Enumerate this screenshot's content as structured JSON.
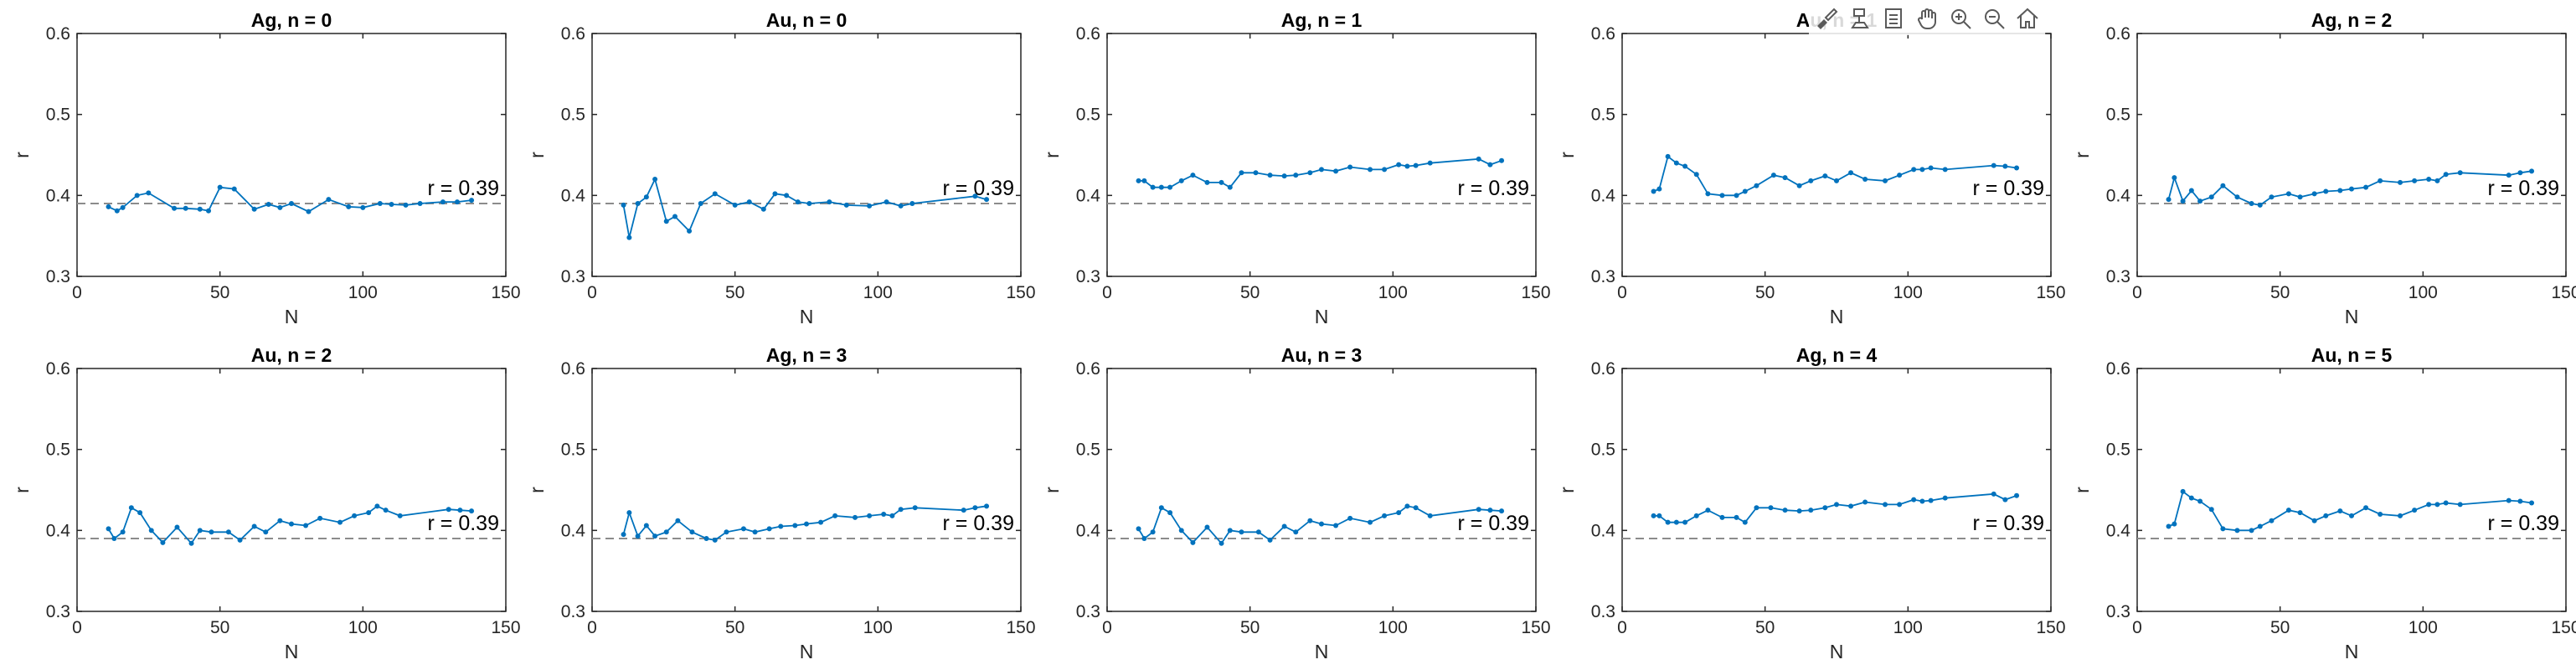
{
  "toolbar": {
    "items": [
      {
        "name": "brush-data-icon"
      },
      {
        "name": "data-tips-icon"
      },
      {
        "name": "export-icon"
      },
      {
        "name": "pan-icon"
      },
      {
        "name": "zoom-in-icon"
      },
      {
        "name": "zoom-out-icon"
      },
      {
        "name": "restore-view-icon"
      }
    ]
  },
  "chart_data": [
    {
      "type": "line",
      "title": "Ag, n = 0",
      "xlabel": "N",
      "ylabel": "r",
      "xlim": [
        0,
        150
      ],
      "ylim": [
        0.3,
        0.6
      ],
      "xticks": [
        "0",
        "50",
        "100",
        "150"
      ],
      "yticks": [
        "0.3",
        "0.4",
        "0.5",
        "0.6"
      ],
      "reference_line": {
        "y": 0.39,
        "label": "r = 0.39"
      },
      "x": [
        11,
        14,
        16,
        21,
        25,
        34,
        38,
        43,
        46,
        50,
        55,
        62,
        67,
        71,
        75,
        81,
        88,
        95,
        100,
        106,
        110,
        115,
        120,
        128,
        133,
        138
      ],
      "y": [
        0.386,
        0.381,
        0.385,
        0.4,
        0.403,
        0.384,
        0.384,
        0.383,
        0.381,
        0.41,
        0.408,
        0.383,
        0.389,
        0.385,
        0.39,
        0.38,
        0.395,
        0.386,
        0.385,
        0.39,
        0.389,
        0.388,
        0.39,
        0.392,
        0.392,
        0.394
      ]
    },
    {
      "type": "line",
      "title": "Au, n = 0",
      "xlabel": "N",
      "ylabel": "r",
      "xlim": [
        0,
        150
      ],
      "ylim": [
        0.3,
        0.6
      ],
      "xticks": [
        "0",
        "50",
        "100",
        "150"
      ],
      "yticks": [
        "0.3",
        "0.4",
        "0.5",
        "0.6"
      ],
      "reference_line": {
        "y": 0.39,
        "label": "r = 0.39"
      },
      "x": [
        11,
        13,
        16,
        19,
        22,
        26,
        29,
        34,
        38,
        43,
        50,
        55,
        60,
        64,
        68,
        72,
        76,
        83,
        89,
        97,
        103,
        108,
        112,
        134,
        138
      ],
      "y": [
        0.388,
        0.348,
        0.39,
        0.398,
        0.42,
        0.368,
        0.374,
        0.356,
        0.39,
        0.402,
        0.388,
        0.392,
        0.383,
        0.402,
        0.4,
        0.392,
        0.39,
        0.392,
        0.388,
        0.387,
        0.392,
        0.387,
        0.39,
        0.399,
        0.395
      ]
    },
    {
      "type": "line",
      "title": "Ag, n = 1",
      "xlabel": "N",
      "ylabel": "r",
      "xlim": [
        0,
        150
      ],
      "ylim": [
        0.3,
        0.6
      ],
      "xticks": [
        "0",
        "50",
        "100",
        "150"
      ],
      "yticks": [
        "0.3",
        "0.4",
        "0.5",
        "0.6"
      ],
      "reference_line": {
        "y": 0.39,
        "label": "r = 0.39"
      },
      "x": [
        11,
        13,
        16,
        19,
        22,
        26,
        30,
        35,
        40,
        43,
        47,
        52,
        57,
        62,
        66,
        71,
        75,
        80,
        85,
        92,
        97,
        102,
        105,
        108,
        113,
        130,
        134,
        138
      ],
      "y": [
        0.418,
        0.418,
        0.41,
        0.41,
        0.41,
        0.418,
        0.425,
        0.416,
        0.416,
        0.41,
        0.428,
        0.428,
        0.425,
        0.424,
        0.425,
        0.428,
        0.432,
        0.43,
        0.435,
        0.432,
        0.432,
        0.438,
        0.436,
        0.437,
        0.44,
        0.445,
        0.438,
        0.443
      ]
    },
    {
      "type": "line",
      "title": "Au, n = 1",
      "xlabel": "N",
      "ylabel": "r",
      "xlim": [
        0,
        150
      ],
      "ylim": [
        0.3,
        0.6
      ],
      "xticks": [
        "0",
        "50",
        "100",
        "150"
      ],
      "yticks": [
        "0.3",
        "0.4",
        "0.5",
        "0.6"
      ],
      "reference_line": {
        "y": 0.39,
        "label": "r = 0.39"
      },
      "x": [
        11,
        13,
        16,
        19,
        22,
        26,
        30,
        35,
        40,
        43,
        47,
        53,
        57,
        62,
        66,
        71,
        75,
        80,
        85,
        92,
        97,
        102,
        105,
        108,
        113,
        130,
        134,
        138
      ],
      "y": [
        0.405,
        0.408,
        0.448,
        0.44,
        0.436,
        0.426,
        0.402,
        0.4,
        0.4,
        0.405,
        0.412,
        0.425,
        0.422,
        0.412,
        0.418,
        0.424,
        0.418,
        0.428,
        0.42,
        0.418,
        0.425,
        0.432,
        0.432,
        0.434,
        0.432,
        0.437,
        0.436,
        0.434
      ]
    },
    {
      "type": "line",
      "title": "Ag, n = 2",
      "xlabel": "N",
      "ylabel": "r",
      "xlim": [
        0,
        150
      ],
      "ylim": [
        0.3,
        0.6
      ],
      "xticks": [
        "0",
        "50",
        "100",
        "150"
      ],
      "yticks": [
        "0.3",
        "0.4",
        "0.5",
        "0.6"
      ],
      "reference_line": {
        "y": 0.39,
        "label": "r = 0.39"
      },
      "x": [
        11,
        13,
        16,
        19,
        22,
        26,
        30,
        35,
        40,
        43,
        47,
        53,
        57,
        62,
        66,
        71,
        75,
        80,
        85,
        92,
        97,
        102,
        105,
        108,
        113,
        130,
        134,
        138
      ],
      "y": [
        0.395,
        0.422,
        0.393,
        0.406,
        0.393,
        0.398,
        0.412,
        0.398,
        0.39,
        0.388,
        0.398,
        0.402,
        0.398,
        0.402,
        0.405,
        0.406,
        0.408,
        0.41,
        0.418,
        0.416,
        0.418,
        0.42,
        0.418,
        0.426,
        0.428,
        0.425,
        0.428,
        0.43
      ]
    },
    {
      "type": "line",
      "title": "Au, n = 2",
      "xlabel": "N",
      "ylabel": "r",
      "xlim": [
        0,
        150
      ],
      "ylim": [
        0.3,
        0.6
      ],
      "xticks": [
        "0",
        "50",
        "100",
        "150"
      ],
      "yticks": [
        "0.3",
        "0.4",
        "0.5",
        "0.6"
      ],
      "reference_line": {
        "y": 0.39,
        "label": "r = 0.39"
      },
      "x": [
        11,
        13,
        16,
        19,
        22,
        26,
        30,
        35,
        40,
        43,
        47,
        53,
        57,
        62,
        66,
        71,
        75,
        80,
        85,
        92,
        97,
        102,
        105,
        108,
        113,
        130,
        134,
        138
      ],
      "y": [
        0.402,
        0.39,
        0.398,
        0.428,
        0.422,
        0.4,
        0.385,
        0.404,
        0.384,
        0.4,
        0.398,
        0.398,
        0.388,
        0.405,
        0.398,
        0.412,
        0.408,
        0.406,
        0.415,
        0.41,
        0.418,
        0.422,
        0.43,
        0.425,
        0.418,
        0.426,
        0.425,
        0.424
      ]
    },
    {
      "type": "line",
      "title": "Ag, n = 3",
      "xlabel": "N",
      "ylabel": "r",
      "xlim": [
        0,
        150
      ],
      "ylim": [
        0.3,
        0.6
      ],
      "xticks": [
        "0",
        "50",
        "100",
        "150"
      ],
      "yticks": [
        "0.3",
        "0.4",
        "0.5",
        "0.6"
      ],
      "reference_line": {
        "y": 0.39,
        "label": "r = 0.39"
      },
      "x": [
        11,
        13,
        16,
        19,
        22,
        26,
        30,
        35,
        40,
        43,
        47,
        53,
        57,
        62,
        66,
        71,
        75,
        80,
        85,
        92,
        97,
        102,
        105,
        108,
        113,
        130,
        134,
        138
      ],
      "y": [
        0.395,
        0.422,
        0.393,
        0.406,
        0.393,
        0.398,
        0.412,
        0.398,
        0.39,
        0.388,
        0.398,
        0.402,
        0.398,
        0.402,
        0.405,
        0.406,
        0.408,
        0.41,
        0.418,
        0.416,
        0.418,
        0.42,
        0.418,
        0.426,
        0.428,
        0.425,
        0.428,
        0.43
      ]
    },
    {
      "type": "line",
      "title": "Au, n = 3",
      "xlabel": "N",
      "ylabel": "r",
      "xlim": [
        0,
        150
      ],
      "ylim": [
        0.3,
        0.6
      ],
      "xticks": [
        "0",
        "50",
        "100",
        "150"
      ],
      "yticks": [
        "0.3",
        "0.4",
        "0.5",
        "0.6"
      ],
      "reference_line": {
        "y": 0.39,
        "label": "r = 0.39"
      },
      "x": [
        11,
        13,
        16,
        19,
        22,
        26,
        30,
        35,
        40,
        43,
        47,
        53,
        57,
        62,
        66,
        71,
        75,
        80,
        85,
        92,
        97,
        102,
        105,
        108,
        113,
        130,
        134,
        138
      ],
      "y": [
        0.402,
        0.39,
        0.398,
        0.428,
        0.422,
        0.4,
        0.385,
        0.404,
        0.384,
        0.4,
        0.398,
        0.398,
        0.388,
        0.405,
        0.398,
        0.412,
        0.408,
        0.406,
        0.415,
        0.41,
        0.418,
        0.422,
        0.43,
        0.428,
        0.418,
        0.426,
        0.425,
        0.424
      ]
    },
    {
      "type": "line",
      "title": "Ag, n = 4",
      "xlabel": "N",
      "ylabel": "r",
      "xlim": [
        0,
        150
      ],
      "ylim": [
        0.3,
        0.6
      ],
      "xticks": [
        "0",
        "50",
        "100",
        "150"
      ],
      "yticks": [
        "0.3",
        "0.4",
        "0.5",
        "0.6"
      ],
      "reference_line": {
        "y": 0.39,
        "label": "r = 0.39"
      },
      "x": [
        11,
        13,
        16,
        19,
        22,
        26,
        30,
        35,
        40,
        43,
        47,
        52,
        57,
        62,
        66,
        71,
        75,
        80,
        85,
        92,
        97,
        102,
        105,
        108,
        113,
        130,
        134,
        138
      ],
      "y": [
        0.418,
        0.418,
        0.41,
        0.41,
        0.41,
        0.418,
        0.425,
        0.416,
        0.416,
        0.41,
        0.428,
        0.428,
        0.425,
        0.424,
        0.425,
        0.428,
        0.432,
        0.43,
        0.435,
        0.432,
        0.432,
        0.438,
        0.436,
        0.437,
        0.44,
        0.445,
        0.438,
        0.443
      ]
    },
    {
      "type": "line",
      "title": "Au, n = 5",
      "xlabel": "N",
      "ylabel": "r",
      "xlim": [
        0,
        150
      ],
      "ylim": [
        0.3,
        0.6
      ],
      "xticks": [
        "0",
        "50",
        "100",
        "150"
      ],
      "yticks": [
        "0.3",
        "0.4",
        "0.5",
        "0.6"
      ],
      "reference_line": {
        "y": 0.39,
        "label": "r = 0.39"
      },
      "x": [
        11,
        13,
        16,
        19,
        22,
        26,
        30,
        35,
        40,
        43,
        47,
        53,
        57,
        62,
        66,
        71,
        75,
        80,
        85,
        92,
        97,
        102,
        105,
        108,
        113,
        130,
        134,
        138
      ],
      "y": [
        0.405,
        0.408,
        0.448,
        0.44,
        0.436,
        0.426,
        0.402,
        0.4,
        0.4,
        0.405,
        0.412,
        0.425,
        0.422,
        0.412,
        0.418,
        0.424,
        0.418,
        0.428,
        0.42,
        0.418,
        0.425,
        0.432,
        0.432,
        0.434,
        0.432,
        0.437,
        0.436,
        0.434
      ]
    }
  ],
  "colors": {
    "line": "#0072BD",
    "reference": "#8c8c8c",
    "axes": "#262626"
  }
}
